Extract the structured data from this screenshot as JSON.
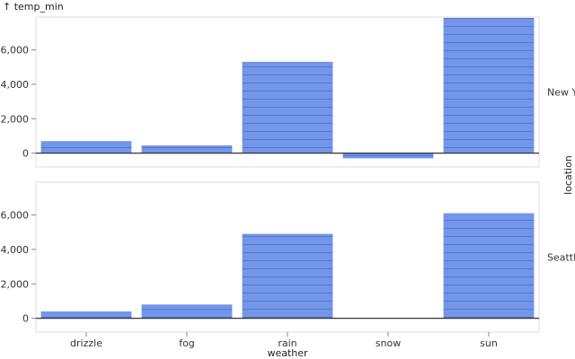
{
  "chart_data": {
    "type": "bar",
    "y_title": "↑ temp_min",
    "x_title": "weather",
    "facet_title": "location",
    "categories": [
      "drizzle",
      "fog",
      "rain",
      "snow",
      "sun"
    ],
    "ylim": [
      -800,
      7900
    ],
    "yticks": [
      0,
      2000,
      4000,
      6000
    ],
    "ytick_labels": [
      "0",
      "2,000",
      "4,000",
      "6,000"
    ],
    "bar_color": "#4c78e0",
    "facets": [
      {
        "label": "New York",
        "values": [
          700,
          450,
          5300,
          -300,
          7850
        ]
      },
      {
        "label": "Seattle",
        "values": [
          400,
          800,
          4900,
          0,
          6100
        ]
      }
    ]
  }
}
